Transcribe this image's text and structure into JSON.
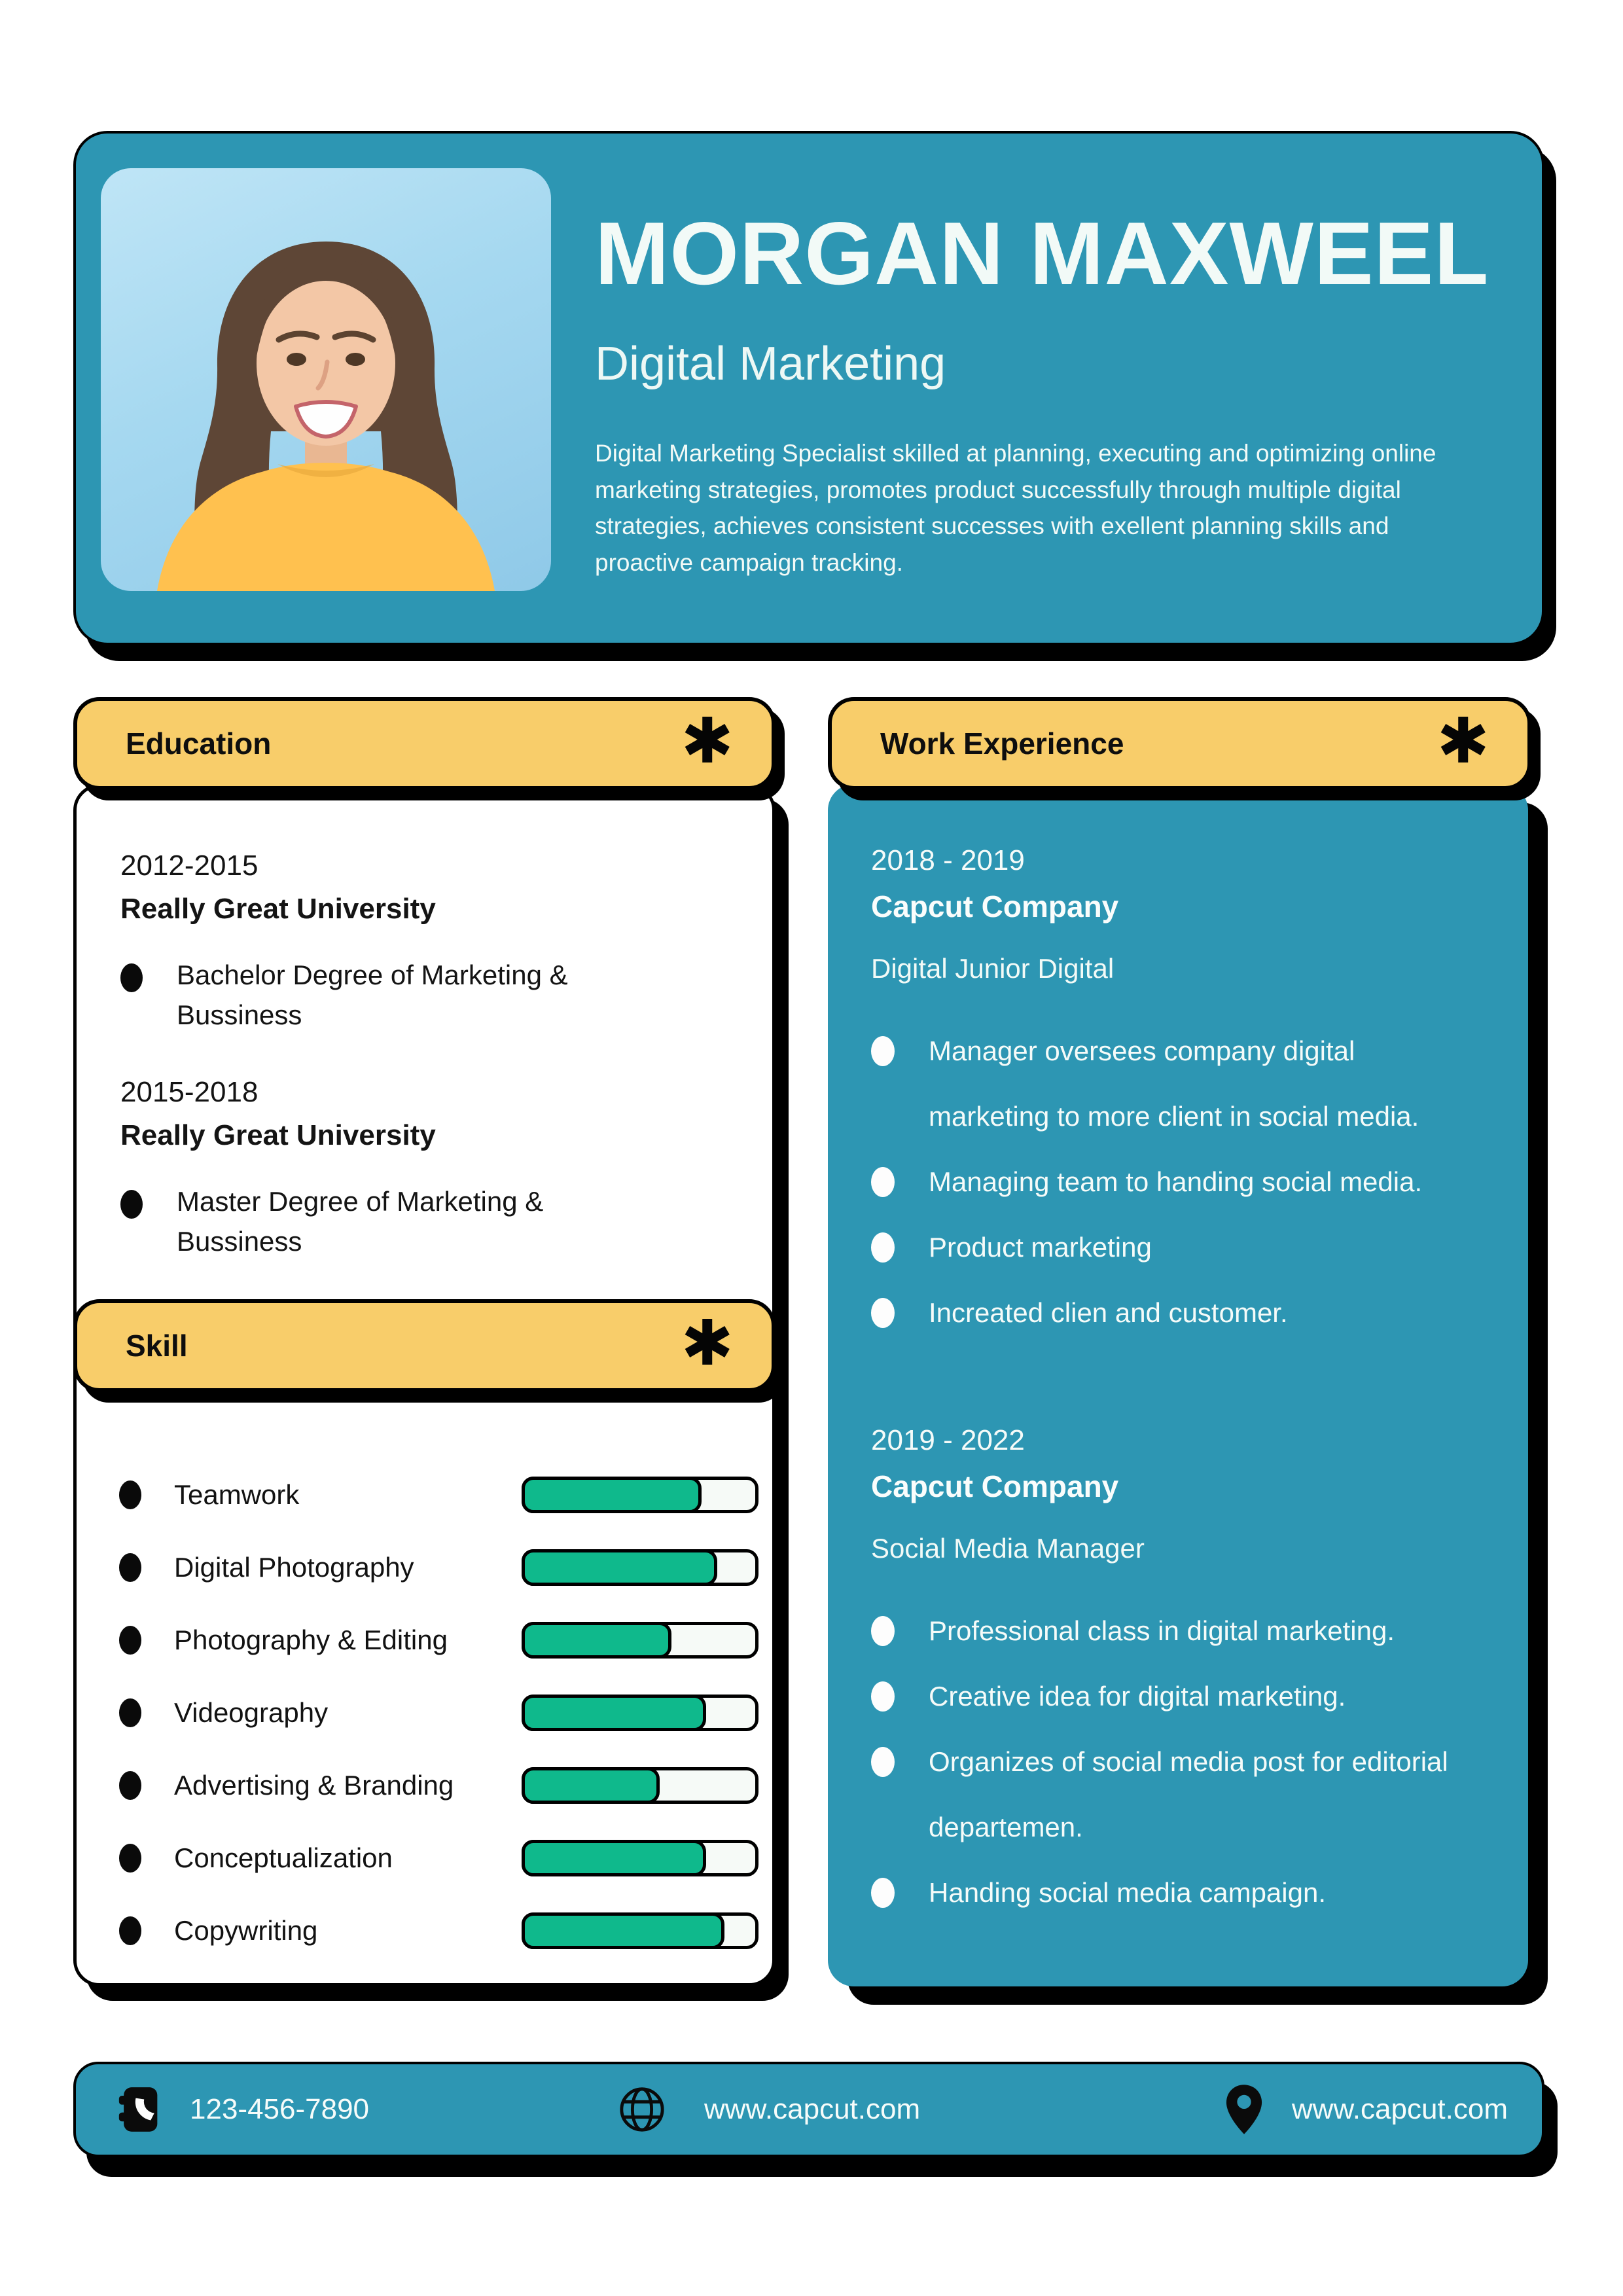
{
  "colors": {
    "teal": "#2D96B3",
    "yellow": "#F8CD6A",
    "green": "#0FB98C",
    "track": "#F6FAF7",
    "ink": "#0A0A0A",
    "paper": "#FFFFFF"
  },
  "header": {
    "name": "MORGAN MAXWEEL",
    "role": "Digital Marketing",
    "summary": "Digital Marketing Specialist skilled at planning, executing and optimizing online marketing strategies, promotes product successfully through multiple digital strategies, achieves consistent successes with exellent planning skills and proactive campaign tracking."
  },
  "sections": {
    "asterisk_icon": "✱"
  },
  "education": {
    "title": "Education",
    "items": [
      {
        "years": "2012-2015",
        "school": "Really Great University",
        "degree": "Bachelor Degree of Marketing & Bussiness"
      },
      {
        "years": "2015-2018",
        "school": "Really Great University",
        "degree": "Master Degree of Marketing & Bussiness"
      }
    ]
  },
  "skills": {
    "title": "Skill",
    "items": [
      {
        "label": "Teamwork",
        "percent": 78
      },
      {
        "label": "Digital Photography",
        "percent": 85
      },
      {
        "label": "Photography & Editing",
        "percent": 65
      },
      {
        "label": "Videography",
        "percent": 80
      },
      {
        "label": "Advertising & Branding",
        "percent": 60
      },
      {
        "label": "Conceptualization",
        "percent": 80
      },
      {
        "label": "Copywriting",
        "percent": 88
      }
    ]
  },
  "experience": {
    "title": "Work Experience",
    "jobs": [
      {
        "years": "2018 - 2019",
        "company": "Capcut Company",
        "role": "Digital Junior Digital",
        "bullets": [
          "Manager oversees company digital marketing to more client in social media.",
          "Managing team to handing social media.",
          "Product marketing",
          "Increated clien and customer."
        ]
      },
      {
        "years": "2019 - 2022",
        "company": "Capcut Company",
        "role": "Social Media Manager",
        "bullets": [
          "Professional class in digital marketing.",
          "Creative idea for digital marketing.",
          "Organizes of social media post for editorial departemen.",
          "Handing social media campaign."
        ]
      }
    ]
  },
  "footer": {
    "phone": "123-456-7890",
    "website": "www.capcut.com",
    "location": "www.capcut.com"
  }
}
